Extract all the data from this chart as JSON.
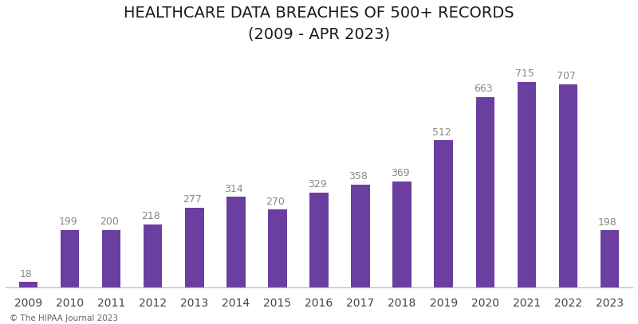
{
  "title_line1": "HEALTHCARE DATA BREACHES OF 500+ RECORDS",
  "title_line2": "(2009 - APR 2023)",
  "categories": [
    "2009",
    "2010",
    "2011",
    "2012",
    "2013",
    "2014",
    "2015",
    "2016",
    "2017",
    "2018",
    "2019",
    "2020",
    "2021",
    "2022",
    "2023"
  ],
  "values": [
    18,
    199,
    200,
    218,
    277,
    314,
    270,
    329,
    358,
    369,
    512,
    663,
    715,
    707,
    198
  ],
  "bar_color": "#6b3fa0",
  "label_color": "#888888",
  "background_color": "#ffffff",
  "footer_text": "© The HIPAA Journal 2023",
  "title_fontsize": 14,
  "label_fontsize": 9,
  "tick_fontsize": 10,
  "footer_fontsize": 7.5,
  "ylim": [
    0,
    820
  ]
}
